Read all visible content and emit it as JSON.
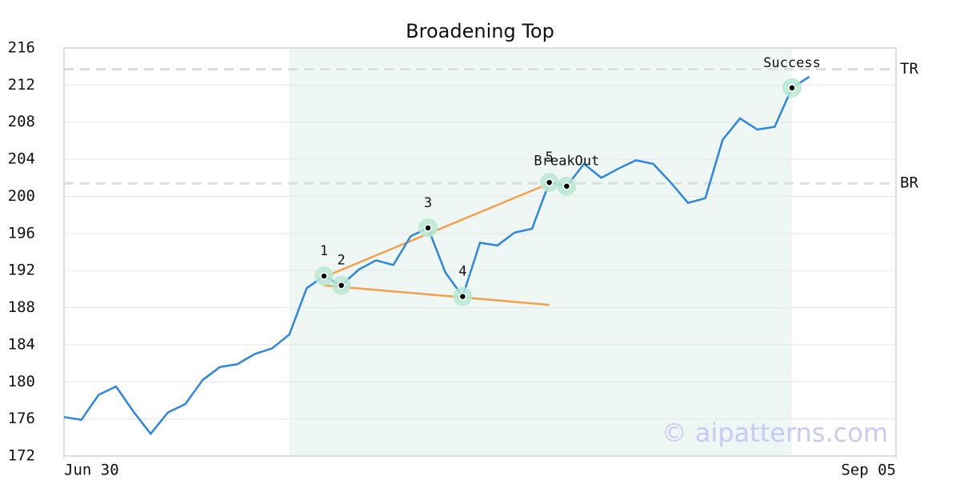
{
  "chart_data": {
    "type": "line",
    "title": "Broadening Top",
    "x": [
      0,
      1,
      2,
      3,
      4,
      5,
      6,
      7,
      8,
      9,
      10,
      11,
      12,
      13,
      14,
      15,
      16,
      17,
      18,
      19,
      20,
      21,
      22,
      23,
      24,
      25,
      26,
      27,
      28,
      29,
      30,
      31,
      32,
      33,
      34,
      35,
      36,
      37,
      38,
      39,
      40,
      41,
      42,
      43
    ],
    "values": [
      176.2,
      175.9,
      178.6,
      179.5,
      176.8,
      174.4,
      176.7,
      177.6,
      180.2,
      181.6,
      181.9,
      183.0,
      183.6,
      185.1,
      190.1,
      191.4,
      190.4,
      192.1,
      193.1,
      192.6,
      195.7,
      196.6,
      191.8,
      189.2,
      195.0,
      194.7,
      196.1,
      196.5,
      201.5,
      201.1,
      203.5,
      202.0,
      203.0,
      203.9,
      203.5,
      201.5,
      199.3,
      199.8,
      206.1,
      208.4,
      207.2,
      207.5,
      211.7,
      212.9
    ],
    "color": "#2e86de",
    "xlim": [
      0,
      48
    ],
    "xticks": [
      {
        "value": 0,
        "label": "Jun 30"
      },
      {
        "value": 48,
        "label": "Sep 05"
      }
    ],
    "ylim": [
      172,
      216
    ],
    "yticks": [
      172,
      176,
      180,
      184,
      188,
      192,
      196,
      200,
      204,
      208,
      212,
      216
    ],
    "grid": true,
    "highlight": {
      "x": [
        13,
        42
      ],
      "color": "#eef7f3"
    },
    "reference_lines": [
      {
        "label": "TR",
        "value": 213.7
      },
      {
        "label": "BR",
        "value": 201.4
      }
    ],
    "trendlines": [
      {
        "x": [
          15,
          28
        ],
        "y": [
          191.3,
          201.4
        ],
        "color": "#f4a04a"
      },
      {
        "x": [
          15,
          28
        ],
        "y": [
          190.4,
          188.3
        ],
        "color": "#f4a04a"
      }
    ],
    "points": [
      {
        "x": 15,
        "label": "1"
      },
      {
        "x": 16,
        "label": "2"
      },
      {
        "x": 21,
        "label": "3"
      },
      {
        "x": 23,
        "label": "4"
      },
      {
        "x": 28,
        "label": "5"
      },
      {
        "x": 29,
        "label": "BreakOut"
      },
      {
        "x": 42,
        "label": "Success"
      }
    ],
    "watermark": "© aipatterns.com"
  }
}
